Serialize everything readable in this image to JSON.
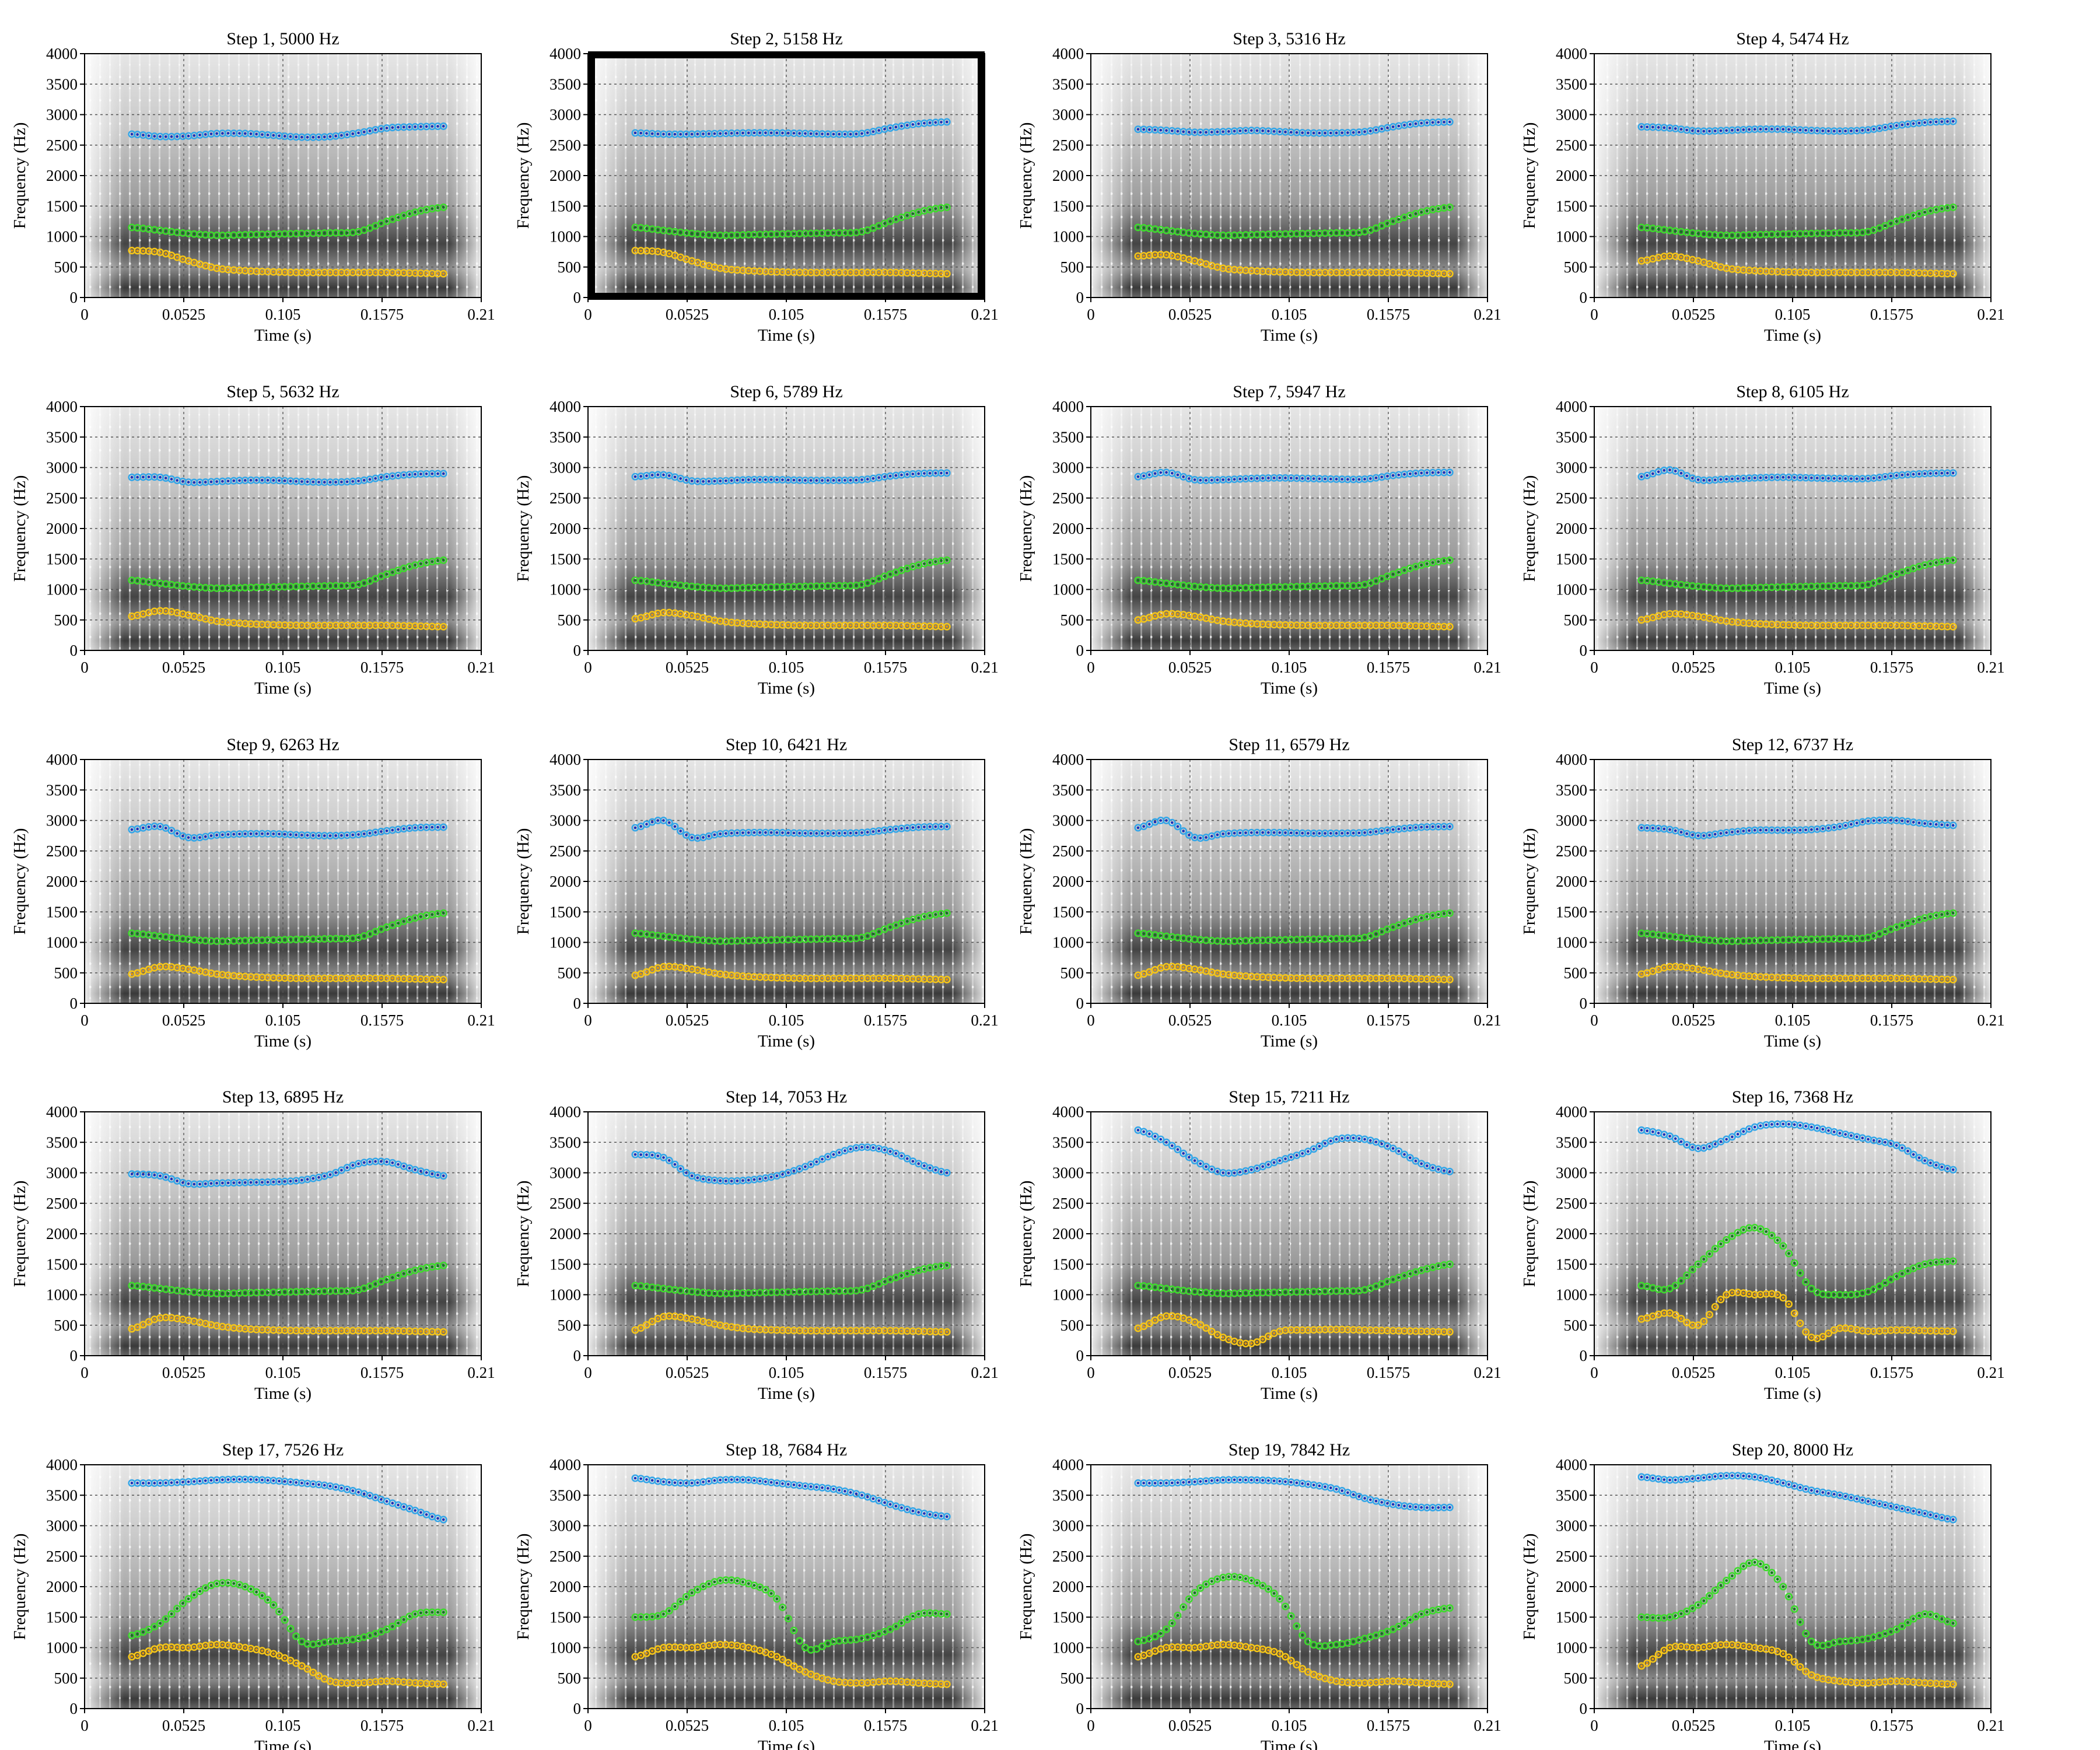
{
  "chart_data": {
    "type": "scatter",
    "description_shared": {
      "xlabel": "Time (s)",
      "ylabel": "Frequency (Hz)",
      "xlim": [
        0,
        0.21
      ],
      "ylim": [
        0,
        4000
      ],
      "xticks": [
        "0",
        "0.0525",
        "0.105",
        "0.1575",
        "0.21"
      ],
      "yticks": [
        "0",
        "500",
        "1000",
        "1500",
        "2000",
        "2500",
        "3000",
        "3500",
        "4000"
      ],
      "grid": true,
      "background": "grayscale spectrogram"
    },
    "colors": {
      "F1_measured": "#f5c518",
      "F1_smooth": "#e69a00",
      "F2_measured": "#3ddc2c",
      "F2_smooth": "#0b7a17",
      "F3_measured": "#35a6e8",
      "F3_smooth": "#1a2fb8"
    },
    "selected_step": 2,
    "time_points": [
      0.025,
      0.04,
      0.055,
      0.07,
      0.085,
      0.1,
      0.115,
      0.13,
      0.145,
      0.16,
      0.175,
      0.19
    ],
    "panels": [
      {
        "title": "Step 1, 5000 Hz",
        "F1": [
          770,
          740,
          600,
          480,
          440,
          420,
          410,
          410,
          410,
          410,
          400,
          390
        ],
        "F2": [
          1150,
          1100,
          1050,
          1020,
          1030,
          1040,
          1050,
          1060,
          1080,
          1250,
          1400,
          1480
        ],
        "F3": [
          2680,
          2640,
          2650,
          2690,
          2690,
          2660,
          2630,
          2640,
          2700,
          2780,
          2800,
          2810
        ]
      },
      {
        "title": "Step 2, 5158 Hz",
        "F1": [
          770,
          740,
          600,
          480,
          440,
          420,
          410,
          410,
          410,
          410,
          400,
          390
        ],
        "F2": [
          1150,
          1100,
          1050,
          1020,
          1030,
          1040,
          1050,
          1060,
          1080,
          1250,
          1400,
          1480
        ],
        "F3": [
          2700,
          2680,
          2680,
          2690,
          2700,
          2700,
          2690,
          2680,
          2690,
          2780,
          2850,
          2880
        ]
      },
      {
        "title": "Step 3, 5316 Hz",
        "F1": [
          680,
          700,
          600,
          480,
          440,
          420,
          410,
          410,
          410,
          410,
          400,
          390
        ],
        "F2": [
          1150,
          1100,
          1050,
          1020,
          1030,
          1040,
          1050,
          1060,
          1080,
          1250,
          1400,
          1480
        ],
        "F3": [
          2760,
          2740,
          2710,
          2720,
          2740,
          2720,
          2700,
          2700,
          2720,
          2800,
          2860,
          2880
        ]
      },
      {
        "title": "Step 4, 5474 Hz",
        "F1": [
          600,
          680,
          600,
          480,
          440,
          420,
          410,
          410,
          410,
          410,
          400,
          390
        ],
        "F2": [
          1150,
          1100,
          1050,
          1020,
          1030,
          1040,
          1050,
          1060,
          1080,
          1250,
          1400,
          1480
        ],
        "F3": [
          2800,
          2780,
          2730,
          2740,
          2760,
          2760,
          2740,
          2730,
          2750,
          2820,
          2870,
          2890
        ]
      },
      {
        "title": "Step 5, 5632 Hz",
        "F1": [
          560,
          650,
          580,
          480,
          440,
          420,
          410,
          410,
          410,
          410,
          400,
          390
        ],
        "F2": [
          1150,
          1100,
          1050,
          1020,
          1030,
          1040,
          1050,
          1060,
          1080,
          1250,
          1400,
          1480
        ],
        "F3": [
          2840,
          2840,
          2760,
          2770,
          2790,
          2790,
          2770,
          2760,
          2780,
          2850,
          2890,
          2900
        ]
      },
      {
        "title": "Step 6, 5789 Hz",
        "F1": [
          520,
          620,
          570,
          480,
          440,
          420,
          410,
          410,
          410,
          410,
          400,
          390
        ],
        "F2": [
          1150,
          1100,
          1050,
          1020,
          1030,
          1040,
          1050,
          1060,
          1080,
          1250,
          1400,
          1480
        ],
        "F3": [
          2850,
          2880,
          2780,
          2780,
          2800,
          2800,
          2790,
          2790,
          2800,
          2860,
          2900,
          2910
        ]
      },
      {
        "title": "Step 7, 5947 Hz",
        "F1": [
          500,
          600,
          560,
          480,
          440,
          420,
          410,
          410,
          410,
          410,
          400,
          390
        ],
        "F2": [
          1150,
          1100,
          1050,
          1020,
          1030,
          1040,
          1050,
          1060,
          1080,
          1250,
          1400,
          1480
        ],
        "F3": [
          2850,
          2920,
          2800,
          2800,
          2820,
          2830,
          2820,
          2810,
          2810,
          2870,
          2910,
          2920
        ]
      },
      {
        "title": "Step 8, 6105 Hz",
        "F1": [
          500,
          600,
          560,
          480,
          440,
          420,
          410,
          410,
          410,
          410,
          400,
          390
        ],
        "F2": [
          1150,
          1100,
          1050,
          1020,
          1030,
          1040,
          1050,
          1060,
          1080,
          1250,
          1400,
          1480
        ],
        "F3": [
          2850,
          2960,
          2800,
          2810,
          2830,
          2840,
          2830,
          2820,
          2820,
          2870,
          2900,
          2910
        ]
      },
      {
        "title": "Step 9, 6263 Hz",
        "F1": [
          480,
          600,
          560,
          480,
          440,
          420,
          410,
          410,
          410,
          410,
          400,
          390
        ],
        "F2": [
          1150,
          1100,
          1050,
          1020,
          1030,
          1040,
          1050,
          1060,
          1080,
          1250,
          1400,
          1480
        ],
        "F3": [
          2850,
          2900,
          2720,
          2760,
          2780,
          2780,
          2760,
          2750,
          2770,
          2830,
          2880,
          2890
        ]
      },
      {
        "title": "Step 10, 6421 Hz",
        "F1": [
          460,
          600,
          560,
          480,
          440,
          420,
          410,
          410,
          410,
          410,
          400,
          390
        ],
        "F2": [
          1150,
          1100,
          1050,
          1020,
          1030,
          1040,
          1050,
          1060,
          1080,
          1250,
          1400,
          1480
        ],
        "F3": [
          2880,
          3000,
          2720,
          2780,
          2800,
          2800,
          2790,
          2790,
          2800,
          2850,
          2890,
          2900
        ]
      },
      {
        "title": "Step 11, 6579 Hz",
        "F1": [
          460,
          600,
          560,
          480,
          440,
          420,
          410,
          410,
          410,
          410,
          400,
          390
        ],
        "F2": [
          1150,
          1100,
          1050,
          1020,
          1030,
          1040,
          1050,
          1060,
          1080,
          1250,
          1400,
          1480
        ],
        "F3": [
          2880,
          3000,
          2720,
          2780,
          2800,
          2800,
          2790,
          2790,
          2800,
          2850,
          2890,
          2900
        ]
      },
      {
        "title": "Step 12, 6737 Hz",
        "F1": [
          480,
          600,
          560,
          480,
          440,
          420,
          410,
          410,
          410,
          410,
          400,
          390
        ],
        "F2": [
          1150,
          1100,
          1050,
          1020,
          1030,
          1040,
          1050,
          1060,
          1080,
          1250,
          1400,
          1480
        ],
        "F3": [
          2880,
          2850,
          2750,
          2800,
          2840,
          2840,
          2850,
          2900,
          2990,
          3000,
          2950,
          2920
        ]
      },
      {
        "title": "Step 13, 6895 Hz",
        "F1": [
          440,
          620,
          580,
          490,
          440,
          420,
          410,
          410,
          410,
          410,
          400,
          390
        ],
        "F2": [
          1150,
          1100,
          1050,
          1020,
          1030,
          1040,
          1050,
          1060,
          1080,
          1250,
          1400,
          1480
        ],
        "F3": [
          2980,
          2950,
          2820,
          2830,
          2840,
          2850,
          2880,
          2970,
          3150,
          3180,
          3050,
          2950
        ]
      },
      {
        "title": "Step 14, 7053 Hz",
        "F1": [
          420,
          640,
          600,
          500,
          440,
          420,
          410,
          410,
          410,
          410,
          400,
          390
        ],
        "F2": [
          1150,
          1100,
          1050,
          1020,
          1030,
          1040,
          1050,
          1060,
          1080,
          1250,
          1400,
          1480
        ],
        "F3": [
          3300,
          3250,
          2950,
          2870,
          2880,
          2950,
          3100,
          3300,
          3420,
          3350,
          3150,
          3000
        ]
      },
      {
        "title": "Step 15, 7211 Hz",
        "F1": [
          450,
          650,
          550,
          300,
          200,
          400,
          420,
          430,
          420,
          410,
          400,
          390
        ],
        "F2": [
          1150,
          1100,
          1050,
          1020,
          1030,
          1040,
          1050,
          1060,
          1080,
          1250,
          1400,
          1500
        ],
        "F3": [
          3700,
          3500,
          3200,
          3000,
          3050,
          3200,
          3350,
          3550,
          3550,
          3400,
          3150,
          3020
        ]
      },
      {
        "title": "Step 16, 7368 Hz",
        "F1": [
          600,
          700,
          500,
          1000,
          1000,
          950,
          300,
          450,
          400,
          420,
          410,
          400
        ],
        "F2": [
          1150,
          1100,
          1500,
          1900,
          2100,
          1800,
          1100,
          1000,
          1050,
          1300,
          1500,
          1550
        ],
        "F3": [
          3700,
          3600,
          3400,
          3550,
          3750,
          3800,
          3750,
          3650,
          3550,
          3450,
          3200,
          3050
        ]
      },
      {
        "title": "Step 17, 7526 Hz",
        "F1": [
          850,
          1000,
          1000,
          1050,
          1000,
          900,
          700,
          450,
          420,
          450,
          420,
          400
        ],
        "F2": [
          1200,
          1400,
          1800,
          2050,
          2000,
          1700,
          1100,
          1100,
          1150,
          1300,
          1550,
          1580
        ],
        "F3": [
          3700,
          3700,
          3720,
          3750,
          3760,
          3740,
          3700,
          3650,
          3550,
          3400,
          3250,
          3100
        ]
      },
      {
        "title": "Step 18, 7684 Hz",
        "F1": [
          850,
          1000,
          1000,
          1050,
          1000,
          850,
          600,
          450,
          420,
          450,
          420,
          400
        ],
        "F2": [
          1500,
          1550,
          1900,
          2100,
          2050,
          1800,
          1000,
          1100,
          1150,
          1300,
          1550,
          1550
        ],
        "F3": [
          3780,
          3720,
          3700,
          3750,
          3750,
          3700,
          3650,
          3600,
          3500,
          3350,
          3220,
          3150
        ]
      },
      {
        "title": "Step 19, 7842 Hz",
        "F1": [
          850,
          1000,
          1000,
          1050,
          1000,
          900,
          600,
          450,
          420,
          450,
          420,
          400
        ],
        "F2": [
          1100,
          1300,
          1900,
          2150,
          2100,
          1800,
          1100,
          1050,
          1150,
          1300,
          1550,
          1650
        ],
        "F3": [
          3700,
          3700,
          3720,
          3750,
          3750,
          3730,
          3680,
          3600,
          3450,
          3350,
          3300,
          3300
        ]
      },
      {
        "title": "Step 20, 8000 Hz",
        "F1": [
          700,
          1000,
          1000,
          1050,
          1000,
          900,
          550,
          450,
          420,
          450,
          420,
          400
        ],
        "F2": [
          1500,
          1500,
          1700,
          2100,
          2400,
          2000,
          1100,
          1100,
          1150,
          1300,
          1550,
          1400
        ],
        "F3": [
          3800,
          3750,
          3780,
          3820,
          3800,
          3700,
          3580,
          3500,
          3400,
          3300,
          3200,
          3100
        ]
      }
    ]
  }
}
